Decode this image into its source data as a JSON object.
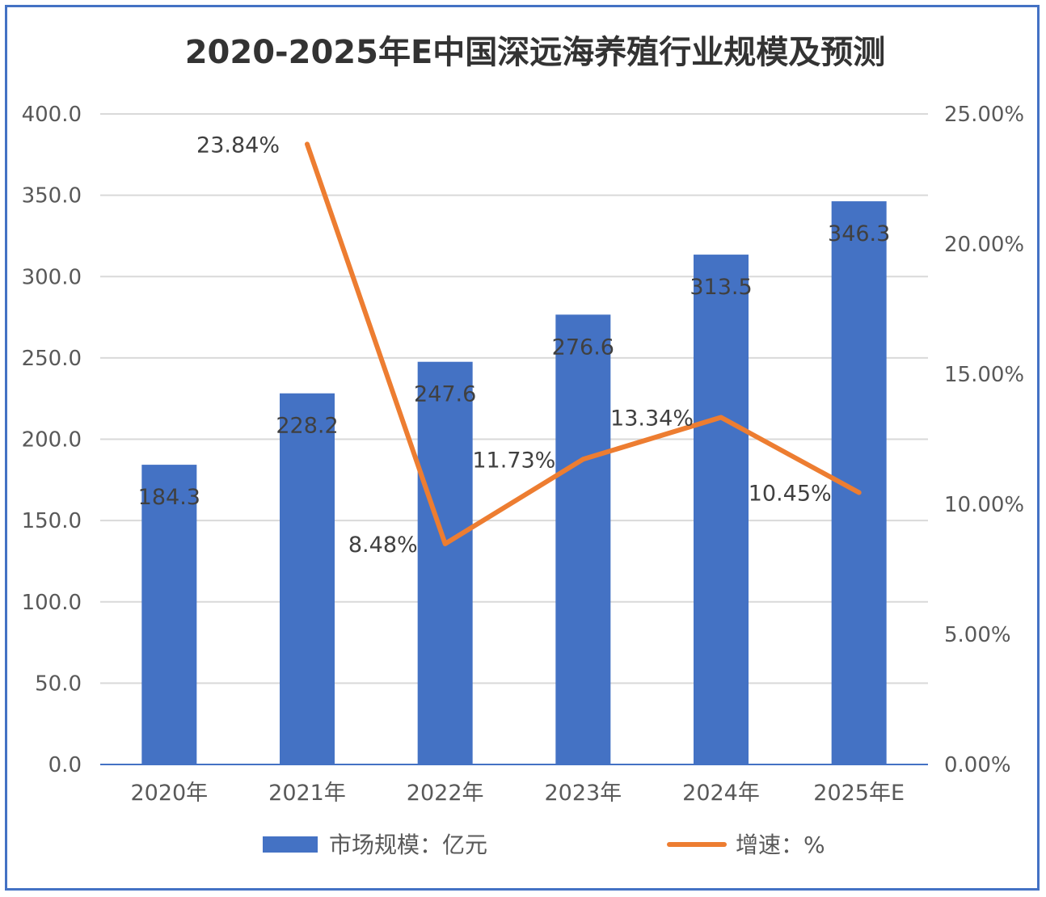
{
  "chart_data": {
    "type": "bar",
    "title": "2020-2025年E中国深远海养殖行业规模及预测",
    "categories": [
      "2020年",
      "2021年",
      "2022年",
      "2023年",
      "2024年",
      "2025年E"
    ],
    "series": [
      {
        "name": "市场规模：亿元",
        "type": "bar",
        "axis": "left",
        "color": "#4472C4",
        "values": [
          184.3,
          228.2,
          247.6,
          276.6,
          313.5,
          346.3
        ],
        "labels": [
          "184.3",
          "228.2",
          "247.6",
          "276.6",
          "313.5",
          "346.3"
        ]
      },
      {
        "name": "增速：%",
        "type": "line",
        "axis": "right",
        "color": "#ED7D31",
        "values": [
          null,
          23.84,
          8.48,
          11.73,
          13.34,
          10.45
        ],
        "labels": [
          "",
          "23.84%",
          "8.48%",
          "11.73%",
          "13.34%",
          "10.45%"
        ]
      }
    ],
    "y_left": {
      "range": [
        0,
        400
      ],
      "ticks": [
        "0.0",
        "50.0",
        "100.0",
        "150.0",
        "200.0",
        "250.0",
        "300.0",
        "350.0",
        "400.0"
      ]
    },
    "y_right": {
      "range": [
        0,
        25
      ],
      "ticks": [
        "0.00%",
        "5.00%",
        "10.00%",
        "15.00%",
        "20.00%",
        "25.00%"
      ]
    },
    "grid": true,
    "legend": "bottom"
  }
}
